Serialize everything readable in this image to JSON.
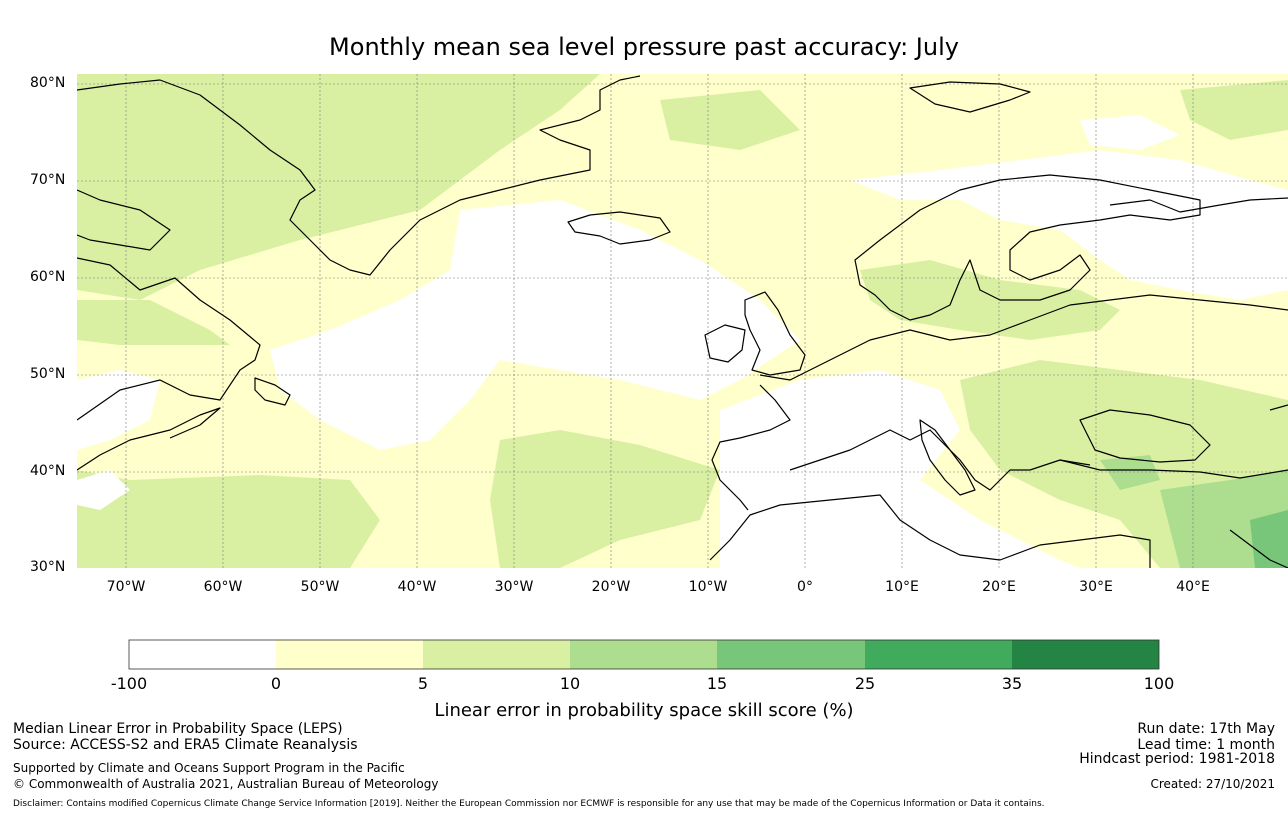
{
  "title": "Monthly mean sea level pressure past accuracy: July",
  "lat_labels": [
    "80°N",
    "70°N",
    "60°N",
    "50°N",
    "40°N",
    "30°N"
  ],
  "lon_labels": [
    "70°W",
    "60°W",
    "50°W",
    "40°W",
    "30°W",
    "20°W",
    "10°W",
    "0°",
    "10°E",
    "20°E",
    "30°E",
    "40°E"
  ],
  "colorbar": {
    "title": "Linear error in probability space skill score (%)",
    "ticks": [
      "-100",
      "0",
      "5",
      "10",
      "15",
      "25",
      "35",
      "100"
    ],
    "colors": [
      "#ffffff",
      "#ffffcc",
      "#d9f0a3",
      "#addd8e",
      "#78c679",
      "#41ab5d",
      "#238443"
    ]
  },
  "footer": {
    "line1": "Median Linear Error in Probability Space (LEPS)",
    "line2": "Source: ACCESS-S2 and ERA5 Climate Reanalysis",
    "line3": "Supported by Climate and Oceans Support Program in the Pacific",
    "line4": "© Commonwealth of Australia 2021, Australian Bureau of Meteorology",
    "run_date": "Run date: 17th May",
    "lead_time": "Lead time: 1 month",
    "hindcast": "Hindcast period: 1981-2018",
    "created": "Created: 27/10/2021",
    "disclaimer": "Disclaimer: Contains modified Copernicus Climate Change Service Information [2019]. Neither the European Commission nor ECMWF is responsible for any use that may be made of the Copernicus Information or Data it contains."
  },
  "map": {
    "extent": {
      "lon_min": -75,
      "lon_max": 50,
      "lat_min": 30,
      "lat_max": 81
    },
    "regions": [
      {
        "name": "greenland-interior",
        "class": 2
      },
      {
        "name": "north-atlantic-west",
        "class": 1
      },
      {
        "name": "central-atlantic-low-skill",
        "class": 0
      },
      {
        "name": "subtropical-atlantic",
        "class": 2
      },
      {
        "name": "iberia-mediterranean",
        "class": 0
      },
      {
        "name": "eastern-europe",
        "class": 2
      },
      {
        "name": "middle-east",
        "class": 4
      }
    ]
  }
}
